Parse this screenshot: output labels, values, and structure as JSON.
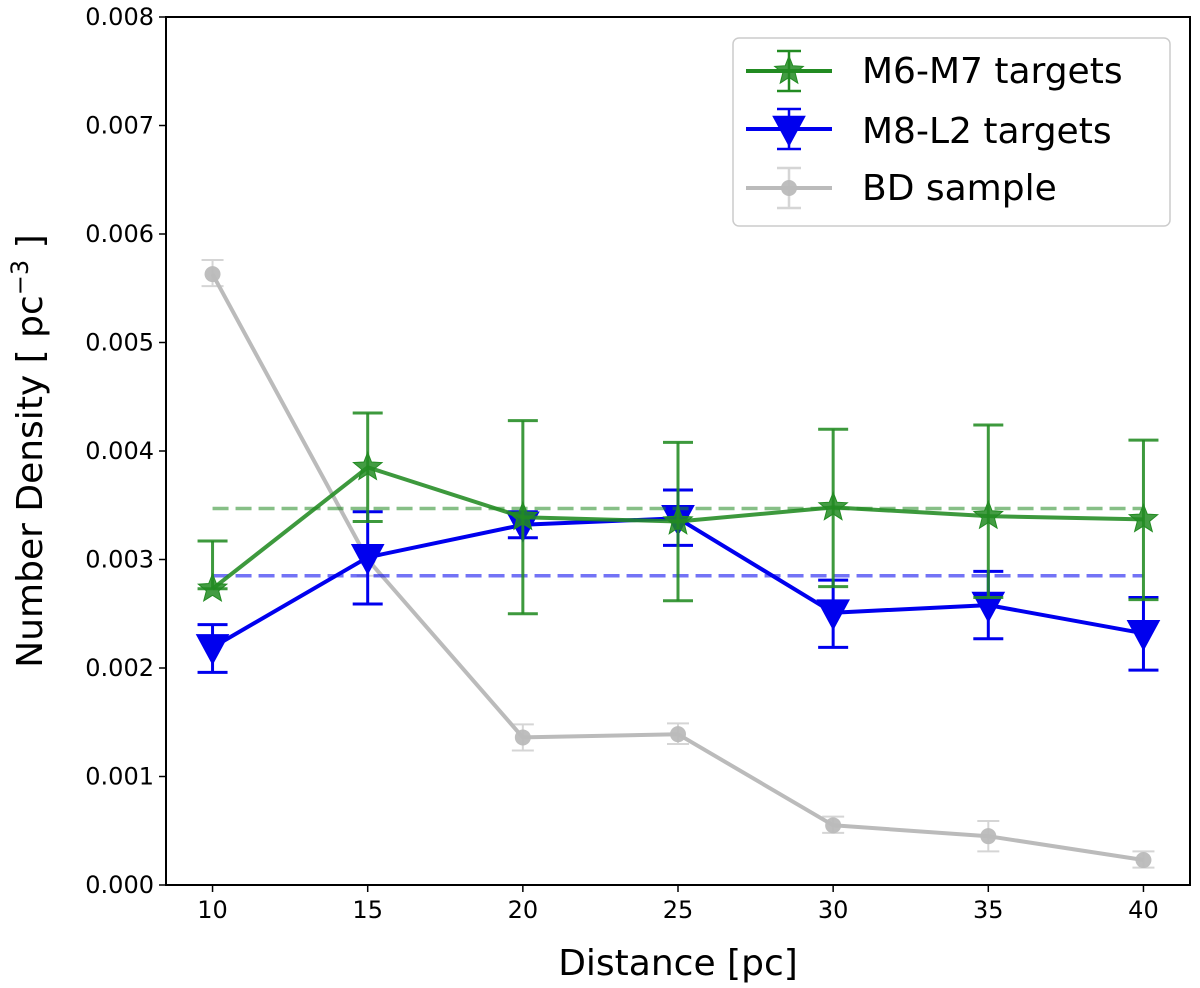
{
  "chart_data": {
    "type": "line",
    "xlabel": "Distance [pc]",
    "ylabel_prefix": "Number Density [ pc",
    "ylabel_sup": "−3",
    "ylabel_suffix": " ]",
    "xlim": [
      8.5,
      41.5
    ],
    "ylim": [
      0.0,
      0.008
    ],
    "xticks": [
      10,
      15,
      20,
      25,
      30,
      35,
      40
    ],
    "xtick_labels": [
      "10",
      "15",
      "20",
      "25",
      "30",
      "35",
      "40"
    ],
    "yticks": [
      0.0,
      0.001,
      0.002,
      0.003,
      0.004,
      0.005,
      0.006,
      0.007,
      0.008
    ],
    "ytick_labels": [
      "0.000",
      "0.001",
      "0.002",
      "0.003",
      "0.004",
      "0.005",
      "0.006",
      "0.007",
      "0.008"
    ],
    "grid": false,
    "legend_position": "top-right",
    "x": [
      10,
      15,
      20,
      25,
      30,
      35,
      40
    ],
    "series": [
      {
        "name": "M6-M7 targets",
        "color": "#228B22",
        "marker": "star",
        "values": [
          0.00273,
          0.00385,
          0.00339,
          0.00335,
          0.00348,
          0.0034,
          0.00337
        ],
        "err_low": [
          0.00273,
          0.00335,
          0.0025,
          0.00262,
          0.00275,
          0.00265,
          0.00263
        ],
        "err_high": [
          0.00317,
          0.00435,
          0.00428,
          0.00408,
          0.0042,
          0.00424,
          0.0041
        ],
        "mean": 0.00347
      },
      {
        "name": "M8-L2 targets",
        "color": "#0000EE",
        "marker": "triangle-down",
        "values": [
          0.00219,
          0.00302,
          0.00332,
          0.00338,
          0.00251,
          0.00258,
          0.00232
        ],
        "err_low": [
          0.00196,
          0.00259,
          0.0032,
          0.00313,
          0.00219,
          0.00227,
          0.00198
        ],
        "err_high": [
          0.0024,
          0.00344,
          0.00344,
          0.00364,
          0.00281,
          0.00289,
          0.00265
        ],
        "mean": 0.00285
      },
      {
        "name": "BD sample",
        "color": "#BBBBBB",
        "marker": "circle",
        "values": [
          0.00563,
          0.003,
          0.00136,
          0.00139,
          0.00055,
          0.00045,
          0.00023
        ],
        "err_low": [
          0.00552,
          0.00285,
          0.00124,
          0.0013,
          0.00048,
          0.00031,
          0.00016
        ],
        "err_high": [
          0.00576,
          0.0031,
          0.00148,
          0.00149,
          0.00063,
          0.00059,
          0.00031
        ]
      }
    ]
  }
}
